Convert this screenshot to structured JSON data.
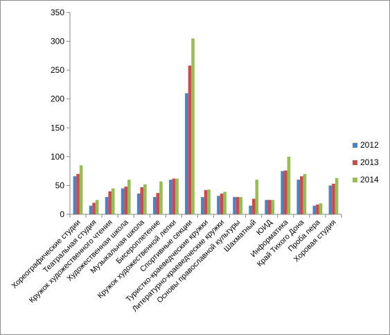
{
  "chart_data": {
    "type": "bar",
    "categories": [
      "Хореографические студии",
      "Театральная студия",
      "Кружок художественного чтения",
      "Художественная школа",
      "Музыкальная школа",
      "Бисероплетение",
      "Кружок художественной лепки",
      "Спортивные секции",
      "Туристко-краеведческие кружки",
      "Литературно-краеведческие кружки",
      "Основы православной культуры",
      "Шахматный",
      "ЮИД",
      "Информатика",
      "Край Тихого Дона",
      "Проба пера",
      "Хоровая студия"
    ],
    "series": [
      {
        "name": "2012",
        "color": "#4f81bd",
        "values": [
          66,
          15,
          30,
          45,
          36,
          30,
          60,
          210,
          30,
          32,
          30,
          15,
          25,
          75,
          60,
          15,
          50
        ]
      },
      {
        "name": "2013",
        "color": "#c0504d",
        "values": [
          70,
          20,
          40,
          48,
          47,
          37,
          62,
          258,
          42,
          36,
          30,
          27,
          25,
          76,
          66,
          17,
          53
        ]
      },
      {
        "name": "2014",
        "color": "#9bbb59",
        "values": [
          85,
          25,
          45,
          60,
          52,
          57,
          62,
          305,
          43,
          39,
          30,
          60,
          25,
          100,
          70,
          19,
          63
        ]
      }
    ],
    "ylim": [
      0,
      350
    ],
    "yticks": [
      0,
      50,
      100,
      150,
      200,
      250,
      300,
      350
    ],
    "grid": false,
    "legend": "right"
  }
}
